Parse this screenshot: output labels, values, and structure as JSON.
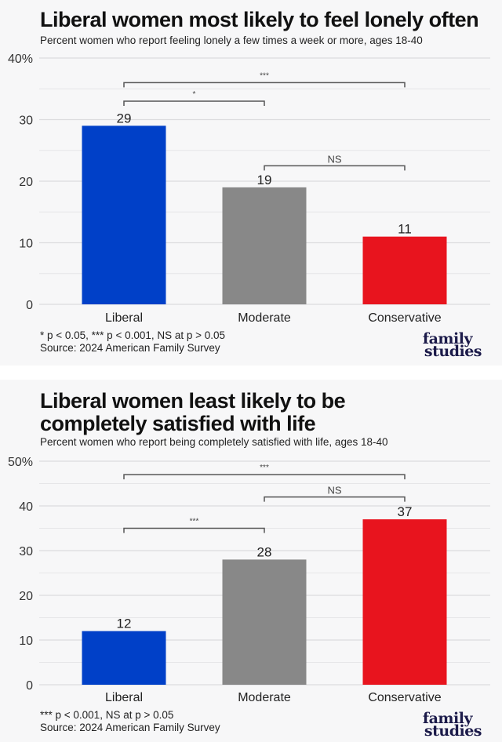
{
  "charts": [
    {
      "title": "Liberal women most likely to feel lonely often",
      "subtitle": "Percent women who report feeling lonely a few times a week or more, ages 18-40",
      "footnote_line1": "* p < 0.05, *** p < 0.001, NS at p > 0.05",
      "footnote_line2": "Source: 2024 American Family Survey",
      "logo_line1": "family",
      "logo_line2": "studies"
    },
    {
      "title_line1": "Liberal women least likely to be",
      "title_line2": "completely satisfied with life",
      "subtitle": "Percent women who report being completely satisfied with life, ages 18-40",
      "footnote_line1": "*** p < 0.001, NS at p > 0.05",
      "footnote_line2": "Source: 2024 American Family Survey",
      "logo_line1": "family",
      "logo_line2": "studies"
    }
  ],
  "chart_data": [
    {
      "type": "bar",
      "title": "Liberal women most likely to feel lonely often",
      "subtitle": "Percent women who report feeling lonely a few times a week or more, ages 18-40",
      "xlabel": "",
      "ylabel": "",
      "categories": [
        "Liberal",
        "Moderate",
        "Conservative"
      ],
      "values": [
        29,
        19,
        11
      ],
      "data_labels": [
        "29",
        "19",
        "11"
      ],
      "colors": [
        "#0040c8",
        "#888888",
        "#e8141e"
      ],
      "ylim": [
        0,
        40
      ],
      "yticks": [
        0,
        10,
        20,
        30,
        40
      ],
      "ytick_labels": [
        "0",
        "10",
        "20",
        "30",
        "40%"
      ],
      "grid": true,
      "significance": [
        {
          "from": "Liberal",
          "to": "Conservative",
          "label": "***",
          "level": 36
        },
        {
          "from": "Liberal",
          "to": "Moderate",
          "label": "*",
          "level": 33
        },
        {
          "from": "Moderate",
          "to": "Conservative",
          "label": "NS",
          "level": 22.5
        }
      ]
    },
    {
      "type": "bar",
      "title": "Liberal women least likely to be completely satisfied with life",
      "subtitle": "Percent women who report being completely satisfied with life, ages 18-40",
      "xlabel": "",
      "ylabel": "",
      "categories": [
        "Liberal",
        "Moderate",
        "Conservative"
      ],
      "values": [
        12,
        28,
        37
      ],
      "data_labels": [
        "12",
        "28",
        "37"
      ],
      "colors": [
        "#0040c8",
        "#888888",
        "#e8141e"
      ],
      "ylim": [
        0,
        50
      ],
      "yticks": [
        0,
        10,
        20,
        30,
        40,
        50
      ],
      "ytick_labels": [
        "0",
        "10",
        "20",
        "30",
        "40",
        "50%"
      ],
      "grid": true,
      "significance": [
        {
          "from": "Liberal",
          "to": "Conservative",
          "label": "***",
          "level": 47
        },
        {
          "from": "Moderate",
          "to": "Conservative",
          "label": "NS",
          "level": 42
        },
        {
          "from": "Liberal",
          "to": "Moderate",
          "label": "***",
          "level": 35
        }
      ]
    }
  ]
}
